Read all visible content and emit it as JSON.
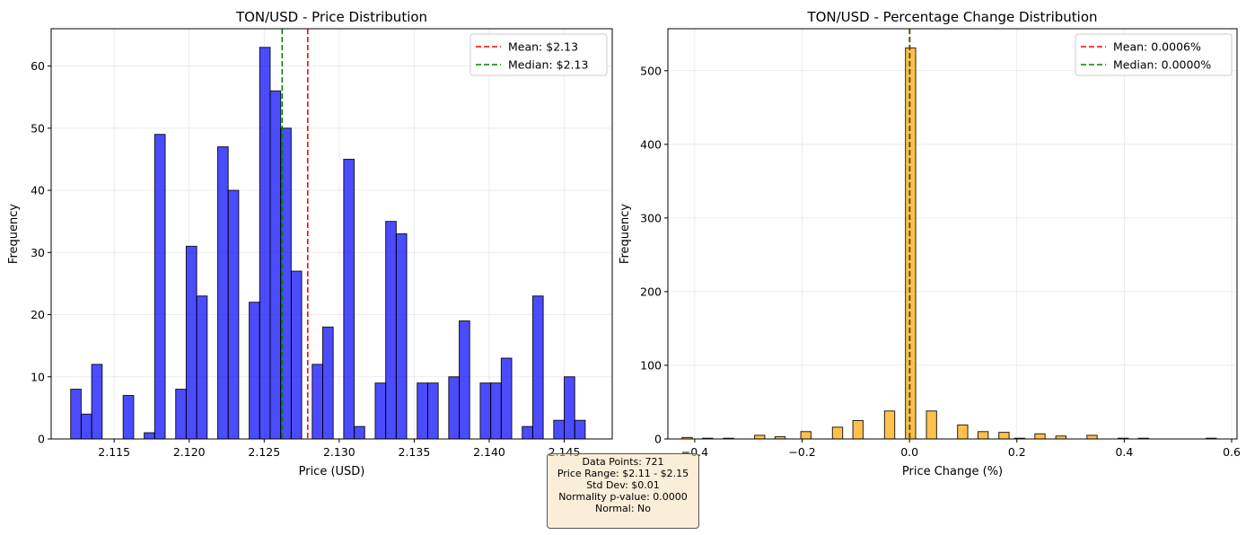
{
  "chart_data": [
    {
      "type": "bar",
      "title": "TON/USD - Price Distribution",
      "xlabel": "Price (USD)",
      "ylabel": "Frequency",
      "xlim": [
        2.1108,
        2.1482
      ],
      "ylim": [
        0,
        66
      ],
      "xticks": [
        "2.115",
        "2.120",
        "2.125",
        "2.130",
        "2.135",
        "2.140",
        "2.145"
      ],
      "xtick_values": [
        2.115,
        2.12,
        2.125,
        2.13,
        2.135,
        2.14,
        2.145
      ],
      "yticks": [
        "0",
        "10",
        "20",
        "30",
        "40",
        "50",
        "60"
      ],
      "ytick_values": [
        0,
        10,
        20,
        30,
        40,
        50,
        60
      ],
      "bin_start": 2.1121,
      "bin_width": 0.0007,
      "values": [
        8,
        4,
        12,
        0,
        0,
        7,
        0,
        1,
        49,
        0,
        8,
        31,
        23,
        0,
        47,
        40,
        0,
        22,
        63,
        56,
        50,
        27,
        0,
        12,
        18,
        0,
        45,
        2,
        0,
        9,
        35,
        33,
        0,
        9,
        9,
        0,
        10,
        19,
        0,
        9,
        9,
        13,
        0,
        2,
        23,
        0,
        3,
        10,
        3
      ],
      "color": "#0000ff",
      "grid": true,
      "legend_position": "upper right",
      "lines": [
        {
          "label": "Mean: $2.13",
          "x": 2.1279,
          "color": "#ff0000"
        },
        {
          "label": "Median: $2.13",
          "x": 2.1262,
          "color": "#008000"
        }
      ]
    },
    {
      "type": "bar",
      "title": "TON/USD - Percentage Change Distribution",
      "xlabel": "Price Change (%)",
      "ylabel": "Frequency",
      "xlim": [
        -0.45,
        0.61
      ],
      "ylim": [
        0,
        557
      ],
      "xticks": [
        "−0.4",
        "−0.2",
        "0.0",
        "0.2",
        "0.4",
        "0.6"
      ],
      "xtick_values": [
        -0.4,
        -0.2,
        0.0,
        0.2,
        0.4,
        0.6
      ],
      "yticks": [
        "0",
        "100",
        "200",
        "300",
        "400",
        "500"
      ],
      "ytick_values": [
        0,
        100,
        200,
        300,
        400,
        500
      ],
      "bin_centers": [
        -0.414,
        -0.376,
        -0.337,
        -0.279,
        -0.241,
        -0.193,
        -0.134,
        -0.096,
        -0.037,
        0.002,
        0.041,
        0.099,
        0.137,
        0.176,
        0.205,
        0.243,
        0.282,
        0.34,
        0.398,
        0.436,
        0.562
      ],
      "bin_width": 0.019,
      "values": [
        2,
        1,
        1,
        5,
        3,
        10,
        16,
        25,
        38,
        531,
        38,
        19,
        10,
        9,
        1,
        7,
        4,
        5,
        1,
        1,
        1
      ],
      "color": "#ffa500",
      "grid": true,
      "legend_position": "upper right",
      "lines": [
        {
          "label": "Mean: 0.0006%",
          "x": 0.0006,
          "color": "#ff0000"
        },
        {
          "label": "Median: 0.0000%",
          "x": 0.0,
          "color": "#008000"
        }
      ]
    }
  ],
  "stats": [
    "Data Points: 721",
    "Price Range: $2.11 - $2.15",
    "Std Dev: $0.01",
    "Normality p-value: 0.0000",
    "Normal: No"
  ]
}
